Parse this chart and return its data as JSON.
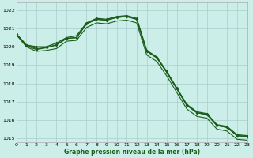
{
  "title": "Graphe pression niveau de la mer (hPa)",
  "bg_color": "#cceee8",
  "grid_color": "#aacccc",
  "line_color": "#1a5c1a",
  "xlim": [
    0,
    23
  ],
  "ylim": [
    1014.8,
    1022.4
  ],
  "yticks": [
    1015,
    1016,
    1017,
    1018,
    1019,
    1020,
    1021,
    1022
  ],
  "xticks": [
    0,
    1,
    2,
    3,
    4,
    5,
    6,
    7,
    8,
    9,
    10,
    11,
    12,
    13,
    14,
    15,
    16,
    17,
    18,
    19,
    20,
    21,
    22,
    23
  ],
  "series": [
    {
      "x": [
        0,
        1,
        2,
        3,
        4,
        5,
        6,
        7,
        8,
        9,
        10,
        11,
        12,
        13,
        14,
        15,
        16,
        17,
        18,
        19,
        20,
        21,
        22,
        23
      ],
      "y": [
        1020.7,
        1020.1,
        1020.0,
        1020.0,
        1020.2,
        1020.5,
        1020.6,
        1021.3,
        1021.55,
        1021.5,
        1021.65,
        1021.7,
        1021.55,
        1019.8,
        1019.45,
        1018.65,
        1017.75,
        1016.85,
        1016.45,
        1016.35,
        1015.75,
        1015.65,
        1015.2,
        1015.15
      ],
      "marker": true,
      "lw": 0.9
    },
    {
      "x": [
        0,
        1,
        2,
        3,
        4,
        5,
        6,
        7,
        8,
        9,
        10,
        11,
        12,
        13,
        14,
        15,
        16,
        17,
        18,
        19,
        20,
        21,
        22,
        23
      ],
      "y": [
        1020.7,
        1020.05,
        1019.85,
        1019.95,
        1020.1,
        1020.45,
        1020.5,
        1021.25,
        1021.5,
        1021.45,
        1021.6,
        1021.65,
        1021.5,
        1019.75,
        1019.4,
        1018.6,
        1017.7,
        1016.8,
        1016.4,
        1016.3,
        1015.7,
        1015.6,
        1015.15,
        1015.1
      ],
      "marker": true,
      "lw": 0.9
    },
    {
      "x": [
        0,
        1,
        2,
        3,
        4,
        5,
        6,
        7,
        8,
        9,
        10,
        11,
        12,
        13,
        14,
        15,
        16,
        17,
        18,
        19,
        20,
        21,
        22,
        23
      ],
      "y": [
        1020.7,
        1020.1,
        1019.9,
        1019.95,
        1020.1,
        1020.45,
        1020.5,
        1021.25,
        1021.5,
        1021.45,
        1021.6,
        1021.65,
        1021.5,
        1019.75,
        1019.4,
        1018.6,
        1017.7,
        1016.8,
        1016.4,
        1016.3,
        1015.7,
        1015.6,
        1015.15,
        1015.1
      ],
      "marker": true,
      "lw": 0.9
    },
    {
      "x": [
        0,
        1,
        2,
        3,
        4,
        5,
        6,
        7,
        8,
        9,
        10,
        11,
        12,
        13,
        14,
        15,
        16,
        17,
        18,
        19,
        20,
        21,
        22,
        23
      ],
      "y": [
        1020.65,
        1020.0,
        1019.75,
        1019.8,
        1019.9,
        1020.3,
        1020.35,
        1021.05,
        1021.3,
        1021.25,
        1021.4,
        1021.45,
        1021.3,
        1019.55,
        1019.2,
        1018.4,
        1017.5,
        1016.6,
        1016.2,
        1016.1,
        1015.5,
        1015.4,
        1014.95,
        1014.9
      ],
      "marker": false,
      "lw": 0.8
    }
  ]
}
